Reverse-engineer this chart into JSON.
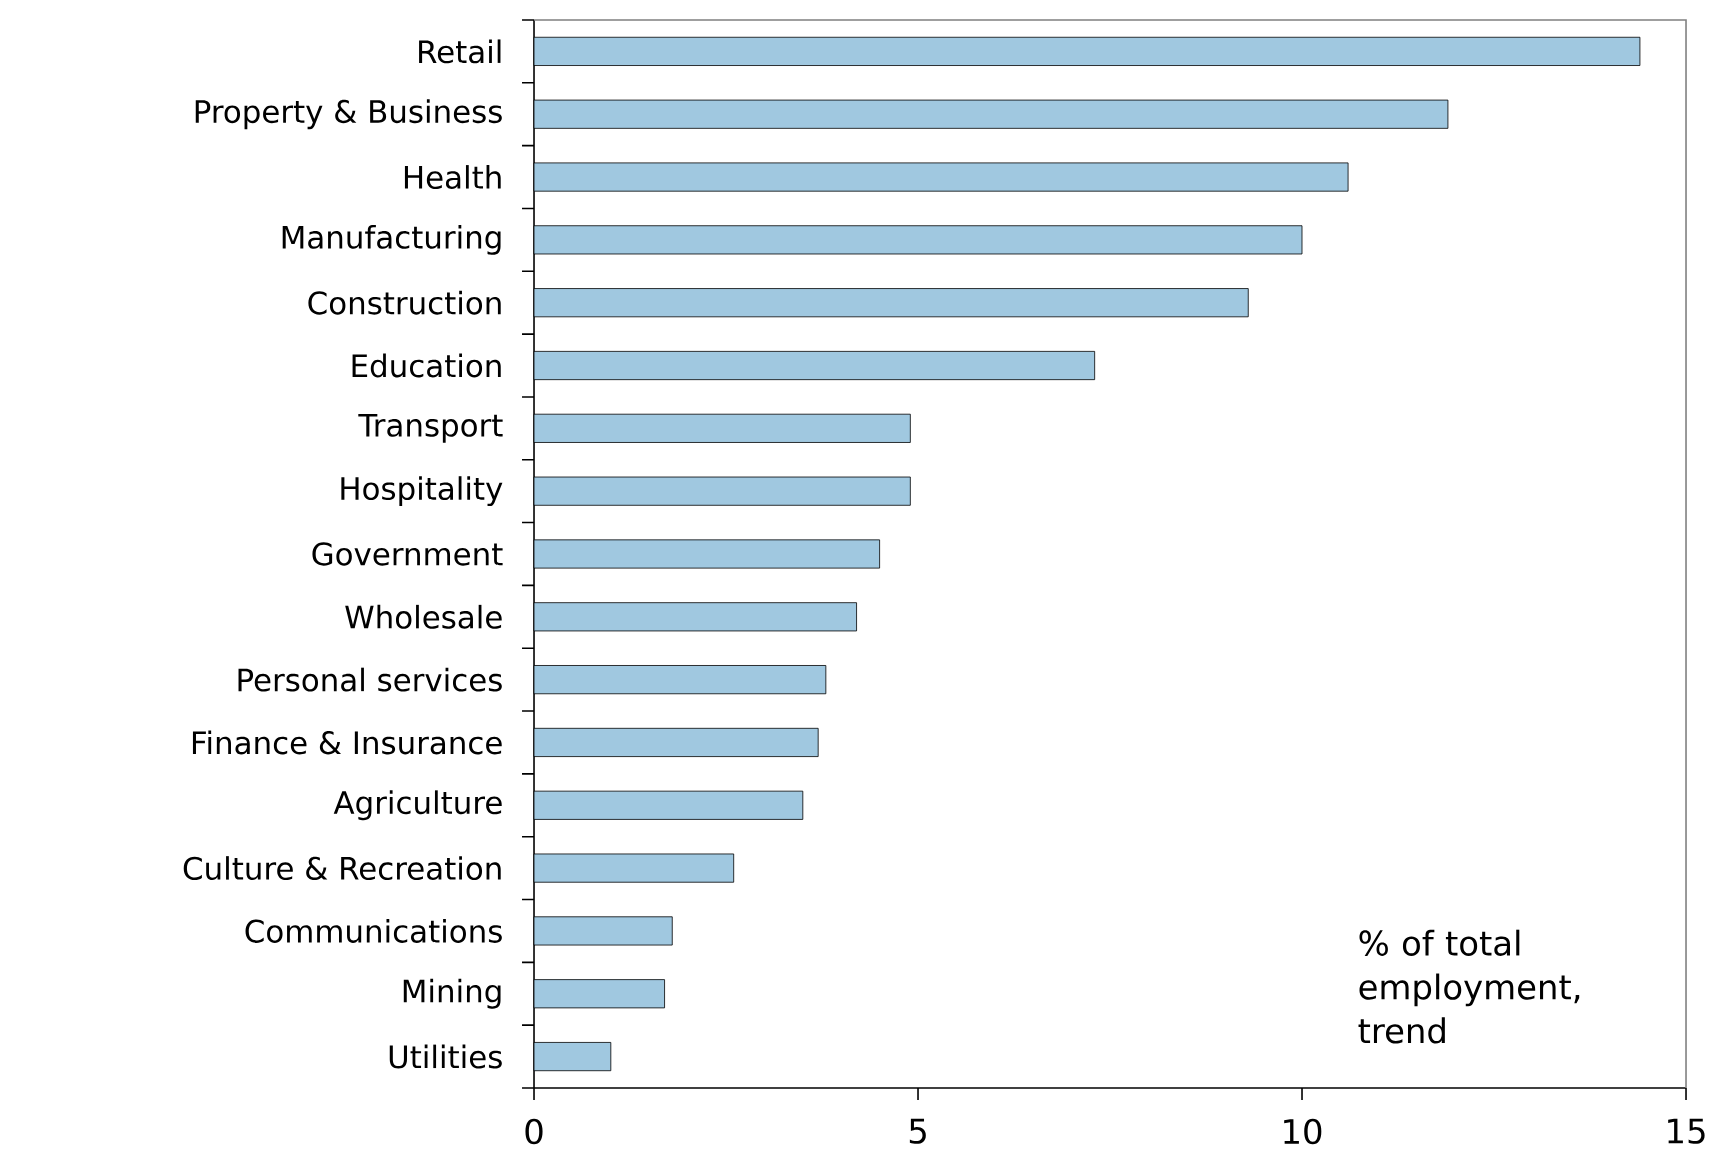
{
  "chart_data": {
    "type": "bar",
    "orientation": "horizontal",
    "categories": [
      "Retail",
      "Property & Business",
      "Health",
      "Manufacturing",
      "Construction",
      "Education",
      "Transport",
      "Hospitality",
      "Government",
      "Wholesale",
      "Personal services",
      "Finance & Insurance",
      "Agriculture",
      "Culture & Recreation",
      "Communications",
      "Mining",
      "Utilities"
    ],
    "values": [
      14.4,
      11.9,
      10.6,
      10.0,
      9.3,
      7.3,
      4.9,
      4.9,
      4.5,
      4.2,
      3.8,
      3.7,
      3.5,
      2.6,
      1.8,
      1.7,
      1.0
    ],
    "color": "#a0c8e0",
    "xlim": [
      0,
      15
    ],
    "xticks": [
      0,
      5,
      10,
      15
    ],
    "annotations": [
      "% of total employment, trend"
    ]
  }
}
